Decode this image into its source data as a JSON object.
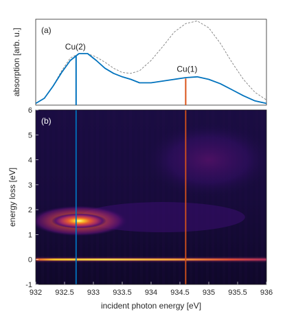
{
  "chart_data": [
    {
      "panel": "(a)",
      "type": "line",
      "ylabel": "absorption [arb. u.]",
      "xlim": [
        932,
        936
      ],
      "ylim": [
        0,
        1
      ],
      "series": [
        {
          "style": "solid",
          "color": "#0072bd",
          "x": [
            932.0,
            932.15,
            932.3,
            932.45,
            932.6,
            932.75,
            932.9,
            933.05,
            933.2,
            933.35,
            933.5,
            933.65,
            933.8,
            934.0,
            934.2,
            934.4,
            934.6,
            934.8,
            935.0,
            935.2,
            935.4,
            935.6,
            935.8,
            936.0
          ],
          "y": [
            0.02,
            0.08,
            0.22,
            0.38,
            0.52,
            0.6,
            0.6,
            0.52,
            0.43,
            0.37,
            0.33,
            0.3,
            0.26,
            0.26,
            0.28,
            0.3,
            0.32,
            0.33,
            0.3,
            0.25,
            0.18,
            0.11,
            0.05,
            0.02
          ]
        },
        {
          "style": "dashed",
          "color": "#7f7f7f",
          "x": [
            932.0,
            932.15,
            932.3,
            932.45,
            932.6,
            932.75,
            932.9,
            933.05,
            933.2,
            933.35,
            933.5,
            933.65,
            933.8,
            934.0,
            934.2,
            934.4,
            934.6,
            934.8,
            935.0,
            935.2,
            935.4,
            935.6,
            935.8,
            936.0
          ],
          "y": [
            0.02,
            0.08,
            0.22,
            0.4,
            0.55,
            0.6,
            0.6,
            0.56,
            0.5,
            0.43,
            0.38,
            0.37,
            0.4,
            0.52,
            0.68,
            0.85,
            0.95,
            0.98,
            0.9,
            0.72,
            0.5,
            0.3,
            0.15,
            0.06
          ]
        }
      ],
      "markers": [
        {
          "label": "Cu(2)",
          "x": 932.7,
          "y": 0.57,
          "color": "#0072bd"
        },
        {
          "label": "Cu(1)",
          "x": 934.6,
          "y": 0.31,
          "color": "#d95319"
        }
      ]
    },
    {
      "panel": "(b)",
      "type": "heatmap",
      "xlabel": "incident photon energy [eV]",
      "ylabel": "energy loss [eV]",
      "xlim": [
        932,
        936
      ],
      "ylim": [
        -1,
        6
      ],
      "xticks": [
        "932",
        "932.5",
        "933",
        "933.5",
        "934",
        "934.5",
        "935",
        "935.5",
        "936"
      ],
      "yticks": [
        "-1",
        "0",
        "1",
        "2",
        "3",
        "4",
        "5",
        "6"
      ],
      "colormap": "inferno",
      "features": [
        {
          "name": "elastic line",
          "energy_loss": 0.0,
          "intensity": 0.8
        },
        {
          "name": "dd excitation",
          "incident_energy": 932.75,
          "energy_loss": 1.55,
          "intensity": 1.0
        },
        {
          "name": "broad charge-transfer",
          "incident_energy": 935.0,
          "energy_loss": 4.0,
          "intensity": 0.25
        }
      ],
      "vlines": [
        {
          "x": 932.7,
          "color": "#0072bd"
        },
        {
          "x": 934.6,
          "color": "#d95319"
        }
      ]
    }
  ]
}
